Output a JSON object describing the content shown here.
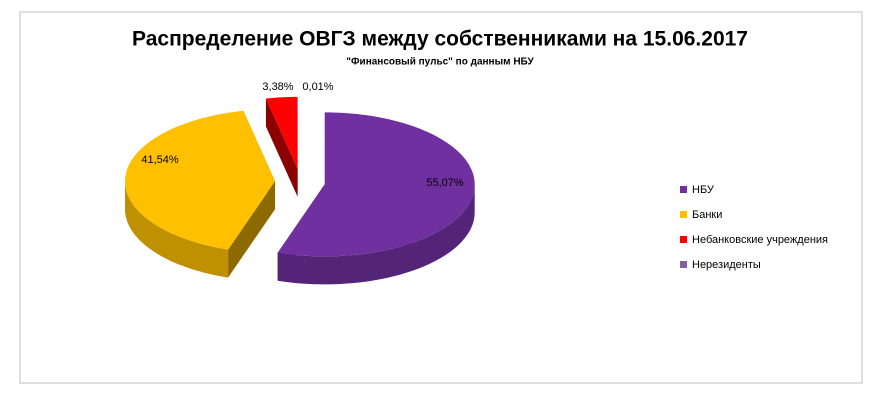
{
  "chart_data": {
    "type": "pie3d",
    "title": "Распределение ОВГЗ между собственниками на 15.06.2017",
    "subtitle": "\"Финансовый пульс\" по данным НБУ",
    "categories": [
      "НБУ",
      "Банки",
      "Небанковские  учреждения",
      "Нерезиденты"
    ],
    "values": [
      55.07,
      41.54,
      3.38,
      0.01
    ],
    "value_labels": [
      "55,07%",
      "41,54%",
      "3,38%",
      "0,01%"
    ],
    "colors": [
      "#7030a0",
      "#ffc000",
      "#ff0000",
      "#8064a2"
    ],
    "legend": "right"
  }
}
